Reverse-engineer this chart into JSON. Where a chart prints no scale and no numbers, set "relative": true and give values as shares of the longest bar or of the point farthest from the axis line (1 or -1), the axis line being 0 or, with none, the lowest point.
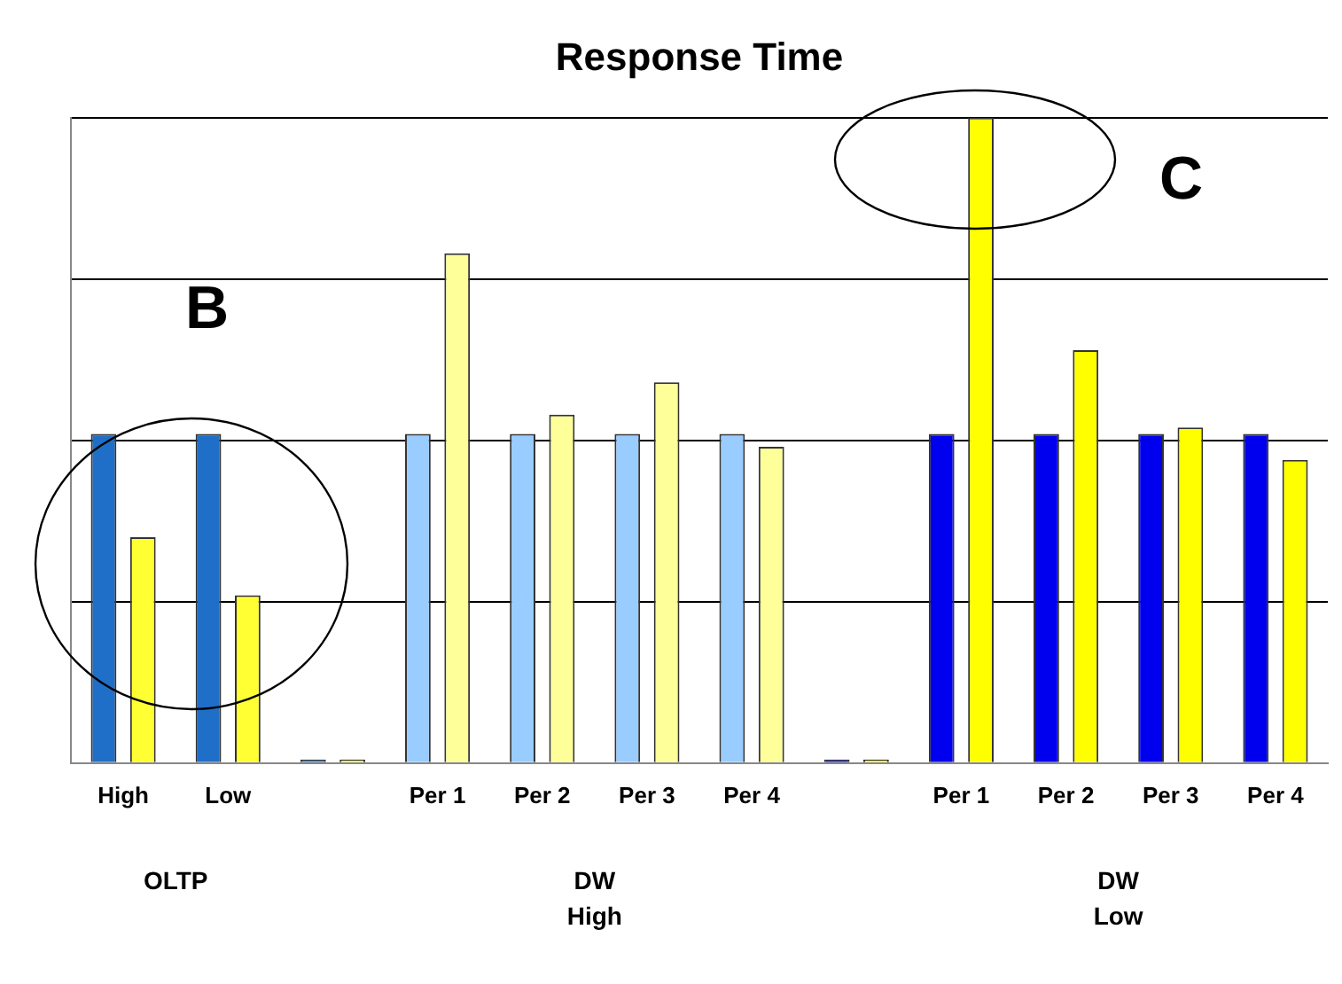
{
  "chart_data": {
    "type": "bar",
    "title": "Response Time",
    "relative": true,
    "grid": "y",
    "categories": [
      "High",
      "Low",
      null,
      "Per 1",
      "Per 2",
      "Per 3",
      "Per 4",
      null,
      "Per 1",
      "Per 2",
      "Per 3",
      "Per 4"
    ],
    "series": [
      {
        "colors": [
          "#1f6fc8",
          "#1f6fc8",
          "#1f6fc8",
          "#99ccff",
          "#99ccff",
          "#99ccff",
          "#99ccff",
          "#0000ee",
          "#0000ee",
          "#0000ee",
          "#0000ee",
          "#0000ee"
        ],
        "values": [
          0.51,
          0.51,
          0,
          0.51,
          0.51,
          0.51,
          0.51,
          0,
          0.51,
          0.51,
          0.51,
          0.51
        ]
      },
      {
        "colors": [
          "#ffff33",
          "#ffff33",
          "#ffff33",
          "#ffff99",
          "#ffff99",
          "#ffff99",
          "#ffff99",
          "#ffff00",
          "#ffff00",
          "#ffff00",
          "#ffff00",
          "#ffff00"
        ],
        "values": [
          0.35,
          0.26,
          0,
          0.79,
          0.54,
          0.59,
          0.49,
          0,
          1,
          0.64,
          0.52,
          0.47
        ]
      }
    ],
    "annotations": [
      "OLTP",
      "DW\nHigh",
      "DW\nLow",
      "B",
      "C"
    ],
    "legend": false
  }
}
